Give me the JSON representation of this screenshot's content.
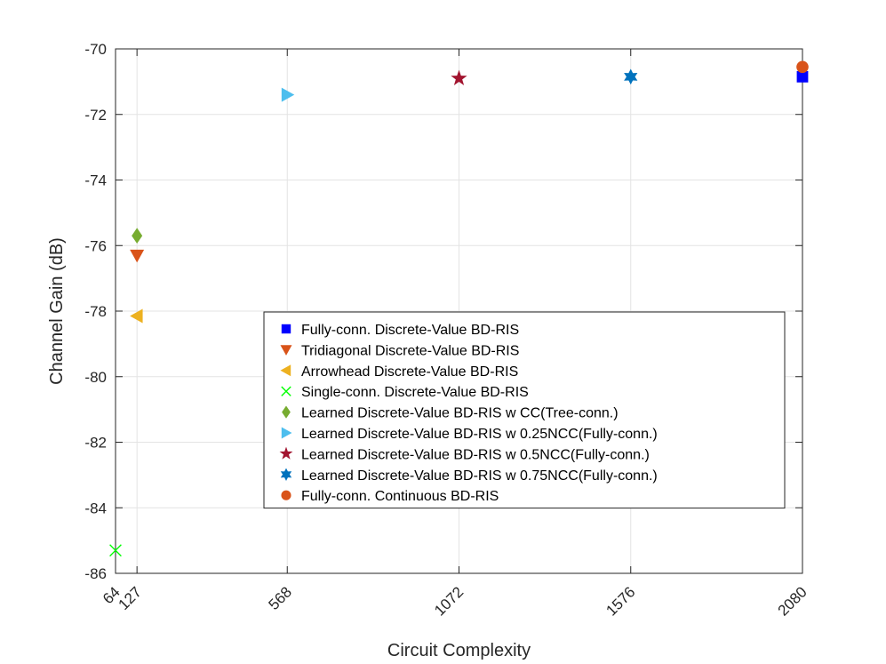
{
  "chart_data": {
    "type": "scatter",
    "title": "",
    "xlabel": "Circuit Complexity",
    "ylabel": "Channel Gain (dB)",
    "xlim": [
      64,
      2080
    ],
    "ylim": [
      -86,
      -70
    ],
    "xticks": [
      64,
      127,
      568,
      1072,
      1576,
      2080
    ],
    "xtick_labels": [
      "64",
      "127",
      "568",
      "1072",
      "1576",
      "2080"
    ],
    "yticks": [
      -86,
      -84,
      -82,
      -80,
      -78,
      -76,
      -74,
      -72,
      -70
    ],
    "ytick_labels": [
      "-86",
      "-84",
      "-82",
      "-80",
      "-78",
      "-76",
      "-74",
      "-72",
      "-70"
    ],
    "grid": true,
    "legend_position": "bottom-right",
    "series": [
      {
        "name": "Fully-conn. Discrete-Value BD-RIS",
        "marker": "square",
        "color": "#0000FF",
        "x": [
          2080
        ],
        "y": [
          -70.85
        ]
      },
      {
        "name": "Tridiagonal Discrete-Value BD-RIS",
        "marker": "triangle-down",
        "color": "#D95319",
        "x": [
          127
        ],
        "y": [
          -76.3
        ]
      },
      {
        "name": "Arrowhead Discrete-Value BD-RIS",
        "marker": "triangle-left",
        "color": "#EDB120",
        "x": [
          127
        ],
        "y": [
          -78.15
        ]
      },
      {
        "name": "Single-conn. Discrete-Value BD-RIS",
        "marker": "x",
        "color": "#00FF00",
        "x": [
          64
        ],
        "y": [
          -85.3
        ]
      },
      {
        "name": "Learned Discrete-Value BD-RIS w CC(Tree-conn.)",
        "marker": "diamond",
        "color": "#77AC30",
        "x": [
          127
        ],
        "y": [
          -75.7
        ]
      },
      {
        "name": "Learned Discrete-Value BD-RIS w 0.25NCC(Fully-conn.)",
        "marker": "triangle-right",
        "color": "#4DBEEE",
        "x": [
          568
        ],
        "y": [
          -71.4
        ]
      },
      {
        "name": "Learned Discrete-Value BD-RIS w 0.5NCC(Fully-conn.)",
        "marker": "pentagram",
        "color": "#A2142F",
        "x": [
          1072
        ],
        "y": [
          -70.9
        ]
      },
      {
        "name": "Learned Discrete-Value BD-RIS w 0.75NCC(Fully-conn.)",
        "marker": "hexagram",
        "color": "#0072BD",
        "x": [
          1576
        ],
        "y": [
          -70.85
        ]
      },
      {
        "name": "Fully-conn. Continuous BD-RIS",
        "marker": "circle",
        "color": "#D95319",
        "x": [
          2080
        ],
        "y": [
          -70.55
        ]
      }
    ]
  }
}
